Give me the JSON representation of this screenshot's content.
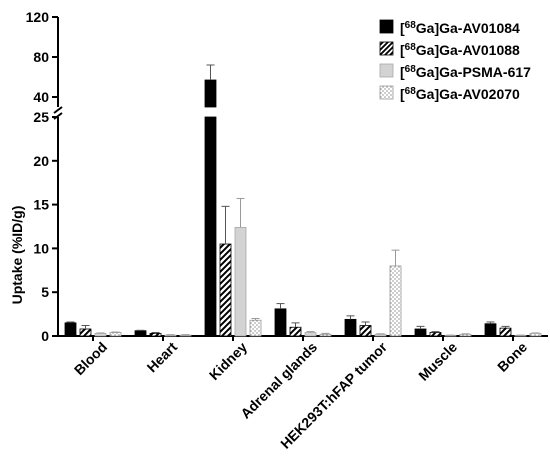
{
  "chart_data": {
    "type": "bar",
    "ylabel": "Uptake (%ID/g)",
    "xlabel": "",
    "title": "",
    "categories": [
      "Blood",
      "Heart",
      "Kidney",
      "Adrenal glands",
      "HEK293T:hFAP tumor",
      "Muscle",
      "Bone"
    ],
    "y_axis": {
      "broken": true,
      "lower_segment": {
        "ylim": [
          0,
          25
        ],
        "ticks": [
          "0",
          "5",
          "10",
          "15",
          "20",
          "25"
        ]
      },
      "upper_segment": {
        "ylim": [
          30,
          120
        ],
        "ticks": [
          "40",
          "80",
          "120"
        ]
      }
    },
    "legend_position": "top-right",
    "series": [
      {
        "name": "[68Ga]Ga-AV01084",
        "pattern": "solid-black",
        "values": [
          1.5,
          0.6,
          57,
          3.1,
          1.9,
          0.8,
          1.4
        ],
        "errors": [
          0.1,
          0.05,
          15,
          0.6,
          0.4,
          0.3,
          0.2
        ]
      },
      {
        "name": "[68Ga]Ga-AV01088",
        "pattern": "diagonal-hatch",
        "values": [
          0.8,
          0.3,
          10.5,
          1.0,
          1.2,
          0.4,
          0.9
        ],
        "errors": [
          0.4,
          0.1,
          4.3,
          0.5,
          0.4,
          0.1,
          0.2
        ]
      },
      {
        "name": "[68Ga]Ga-PSMA-617",
        "pattern": "light-gray",
        "values": [
          0.3,
          0.1,
          12.4,
          0.4,
          0.2,
          0.05,
          0.05
        ],
        "errors": [
          0.05,
          0.05,
          3.3,
          0.1,
          0.05,
          0.05,
          0.05
        ]
      },
      {
        "name": "[68Ga]Ga-AV02070",
        "pattern": "dotted",
        "values": [
          0.4,
          0.1,
          1.8,
          0.2,
          8.0,
          0.2,
          0.3
        ],
        "errors": [
          0.05,
          0.05,
          0.2,
          0.1,
          1.8,
          0.05,
          0.05
        ]
      }
    ]
  }
}
